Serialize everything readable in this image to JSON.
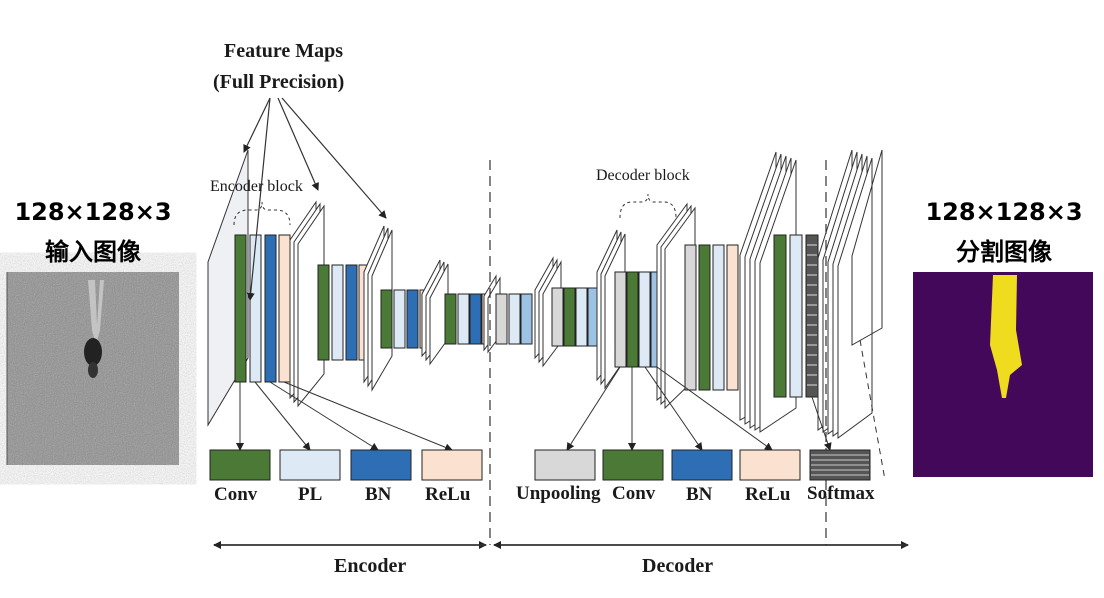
{
  "feature_maps_title": "Feature Maps",
  "feature_maps_subtitle": "(Full Precision)",
  "encoder_block_label": "Encoder block",
  "decoder_block_label": "Decoder block",
  "input": {
    "size": "128×128×3",
    "caption": "输入图像"
  },
  "output": {
    "size": "128×128×3",
    "caption": "分割图像"
  },
  "legend": {
    "conv": "Conv",
    "pl": "PL",
    "bn": "BN",
    "relu": "ReLu",
    "unpooling": "Unpooling",
    "conv2": "Conv",
    "bn2": "BN",
    "relu2": "ReLu",
    "softmax": "Softmax"
  },
  "encoder_label": "Encoder",
  "decoder_label": "Decoder",
  "colors": {
    "conv": "#4a7a35",
    "pl": "#dde9f5",
    "bn": "#2d6eb5",
    "relu": "#fbe1d0",
    "unpooling": "#d8d8d8",
    "input_bg": "#8a8a8a",
    "output_bg": "#44085a",
    "segment": "#f0dc1f"
  }
}
